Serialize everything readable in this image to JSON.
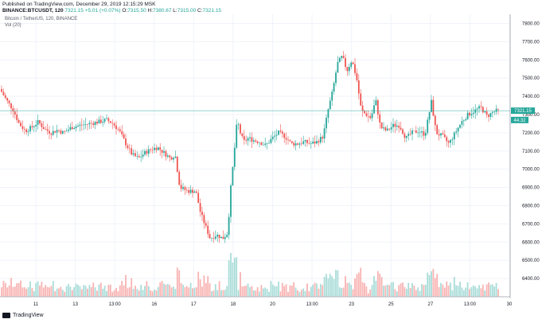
{
  "header": {
    "published": "Published on TradingView.com, December 29, 2019 12:15:29 MSK",
    "symbol": "BINANCE:BTCUSDT, 120",
    "last": "7321.15",
    "change": "+5.01 (+0.07%)",
    "o": "7315.50",
    "h": "7380.67",
    "l": "7315.00",
    "c": "7321.15"
  },
  "chart_data": {
    "type": "candlestick",
    "title": "Bitcoin / TetherUS, 120, BINANCE",
    "volume_label": "Vol (20)",
    "last_price_label": "7321.15",
    "volume_value_label": "44.32",
    "ylim": [
      6300,
      7850
    ],
    "y_ticks": [
      6400,
      6500,
      6600,
      6700,
      6800,
      6900,
      7000,
      7100,
      7200,
      7300,
      7400,
      7500,
      7600,
      7700,
      7800
    ],
    "x_ticks": [
      "11",
      "13",
      "13:00",
      "16",
      "17",
      "18",
      "20",
      "13:00",
      "23",
      "25",
      "27",
      "13:00",
      "30"
    ],
    "colors": {
      "up": "#26a69a",
      "down": "#ef5350",
      "up_vol": "#a9dcd8",
      "down_vol": "#f8b3b2",
      "last_line": "#26a69a"
    },
    "series": [
      {
        "name": "",
        "close_path": [
          [
            0,
            7440
          ],
          [
            8,
            7380
          ],
          [
            16,
            7330
          ],
          [
            24,
            7250
          ],
          [
            32,
            7210
          ],
          [
            40,
            7230
          ],
          [
            48,
            7260
          ],
          [
            56,
            7220
          ],
          [
            64,
            7200
          ],
          [
            72,
            7215
          ],
          [
            80,
            7200
          ],
          [
            90,
            7230
          ],
          [
            100,
            7240
          ],
          [
            112,
            7250
          ],
          [
            124,
            7260
          ],
          [
            134,
            7270
          ],
          [
            142,
            7250
          ],
          [
            150,
            7210
          ],
          [
            158,
            7140
          ],
          [
            166,
            7080
          ],
          [
            174,
            7060
          ],
          [
            182,
            7090
          ],
          [
            190,
            7110
          ],
          [
            198,
            7120
          ],
          [
            206,
            7090
          ],
          [
            214,
            7060
          ],
          [
            220,
            7080
          ],
          [
            226,
            6900
          ],
          [
            236,
            6880
          ],
          [
            246,
            6880
          ],
          [
            252,
            6760
          ],
          [
            258,
            6690
          ],
          [
            264,
            6620
          ],
          [
            272,
            6640
          ],
          [
            280,
            6620
          ],
          [
            286,
            6650
          ],
          [
            290,
            6900
          ],
          [
            294,
            7080
          ],
          [
            298,
            7270
          ],
          [
            302,
            7200
          ],
          [
            306,
            7150
          ],
          [
            312,
            7170
          ],
          [
            318,
            7160
          ],
          [
            326,
            7150
          ],
          [
            334,
            7130
          ],
          [
            342,
            7170
          ],
          [
            350,
            7200
          ],
          [
            358,
            7180
          ],
          [
            366,
            7140
          ],
          [
            374,
            7140
          ],
          [
            382,
            7150
          ],
          [
            390,
            7140
          ],
          [
            398,
            7150
          ],
          [
            406,
            7180
          ],
          [
            412,
            7320
          ],
          [
            418,
            7430
          ],
          [
            424,
            7580
          ],
          [
            430,
            7620
          ],
          [
            436,
            7540
          ],
          [
            442,
            7600
          ],
          [
            448,
            7500
          ],
          [
            454,
            7320
          ],
          [
            460,
            7300
          ],
          [
            466,
            7280
          ],
          [
            472,
            7380
          ],
          [
            478,
            7230
          ],
          [
            486,
            7210
          ],
          [
            494,
            7240
          ],
          [
            502,
            7240
          ],
          [
            510,
            7170
          ],
          [
            518,
            7200
          ],
          [
            526,
            7210
          ],
          [
            534,
            7190
          ],
          [
            542,
            7370
          ],
          [
            548,
            7200
          ],
          [
            556,
            7180
          ],
          [
            564,
            7140
          ],
          [
            572,
            7200
          ],
          [
            580,
            7260
          ],
          [
            588,
            7300
          ],
          [
            596,
            7320
          ],
          [
            604,
            7340
          ],
          [
            612,
            7290
          ],
          [
            618,
            7310
          ],
          [
            624,
            7321
          ]
        ]
      }
    ]
  }
}
